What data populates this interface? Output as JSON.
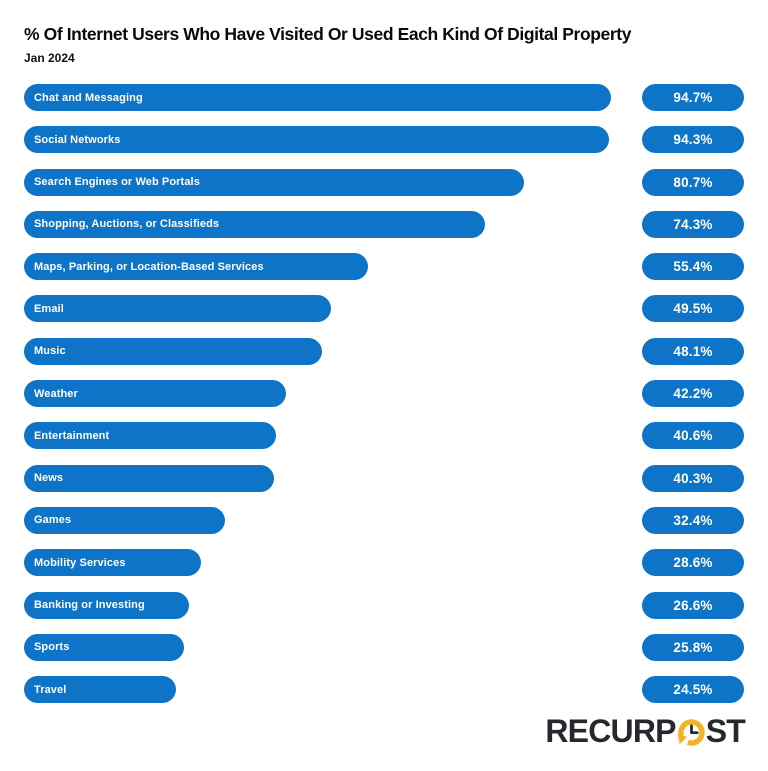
{
  "header": {
    "title": "% Of Internet Users Who Have Visited Or Used Each Kind Of Digital Property",
    "subtitle": "Jan 2024"
  },
  "chart_data": {
    "type": "bar",
    "orientation": "horizontal",
    "title": "% Of Internet Users Who Have Visited Or Used Each Kind Of Digital Property",
    "subtitle": "Jan 2024",
    "xlabel": "",
    "ylabel": "",
    "unit": "%",
    "xlim": [
      0,
      100
    ],
    "grid": false,
    "legend": false,
    "bar_color": "#0d74c8",
    "bar_text_color": "#ffffff",
    "categories": [
      "Chat and Messaging",
      "Social Networks",
      "Search Engines or Web Portals",
      "Shopping, Auctions, or Classifieds",
      "Maps, Parking, or Location-Based Services",
      "Email",
      "Music",
      "Weather",
      "Entertainment",
      "News",
      "Games",
      "Mobility Services",
      "Banking or Investing",
      "Sports",
      "Travel"
    ],
    "values": [
      94.7,
      94.3,
      80.7,
      74.3,
      55.4,
      49.5,
      48.1,
      42.2,
      40.6,
      40.3,
      32.4,
      28.6,
      26.6,
      25.8,
      24.5
    ],
    "value_labels": [
      "94.7%",
      "94.3%",
      "80.7%",
      "74.3%",
      "55.4%",
      "49.5%",
      "48.1%",
      "42.2%",
      "40.6%",
      "40.3%",
      "32.4%",
      "28.6%",
      "26.6%",
      "25.8%",
      "24.5%"
    ]
  },
  "branding": {
    "logo_name": "RecurPost",
    "logo_text_left": "RECURP",
    "logo_text_right": "ST",
    "logo_icon": "clock-history-icon",
    "logo_text_color": "#27282d",
    "logo_clock_color": "#f0b429"
  }
}
